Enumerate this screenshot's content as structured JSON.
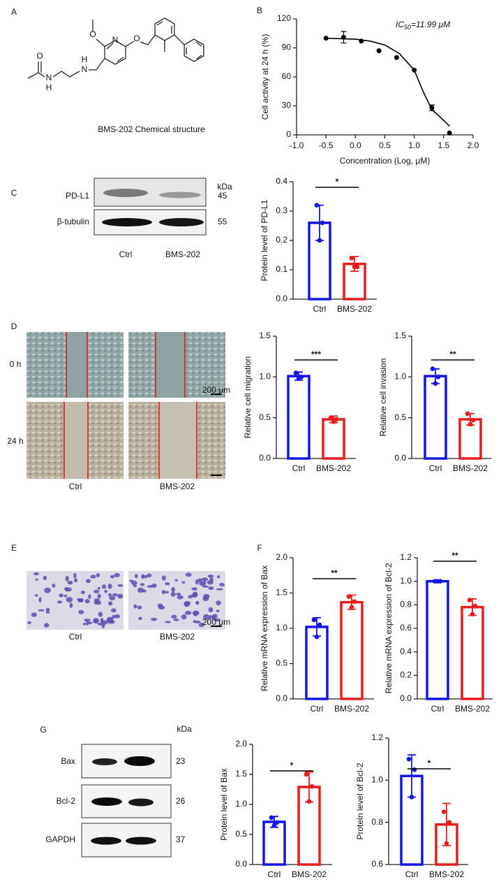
{
  "panel_letters": [
    "A",
    "B",
    "C",
    "D",
    "E",
    "F",
    "G"
  ],
  "structure": {
    "caption": "BMS-202 Chemical structure",
    "atoms": [
      "O",
      "N",
      "O",
      "O",
      "N",
      "H",
      "H",
      "N"
    ]
  },
  "blot_c": {
    "kda": "kDa",
    "rows": [
      {
        "name": "PD-L1",
        "kda": "45"
      },
      {
        "name": "β-tubulin",
        "kda": "55"
      }
    ],
    "lanes": [
      "Ctrl",
      "BMS-202"
    ]
  },
  "wound": {
    "times": [
      "0 h",
      "24 h"
    ],
    "lanes": [
      "Ctrl",
      "BMS-202"
    ],
    "scale_bar": "200 μm"
  },
  "transwell": {
    "lanes": [
      "Ctrl",
      "BMS-202"
    ],
    "scale_bar": "200 μm"
  },
  "blot_g": {
    "kda": "kDa",
    "rows": [
      {
        "name": "Bax",
        "kda": "23"
      },
      {
        "name": "Bcl-2",
        "kda": "26"
      },
      {
        "name": "GAPDH",
        "kda": "37"
      }
    ]
  },
  "chart_data": [
    {
      "type": "scatter",
      "ylabel": "Cell activity at 24 h (%)",
      "xlabel": "Concentration (Log, μM)",
      "annotation": {
        "main": "IC",
        "sub": "50",
        "rest": "=11.99 μM"
      },
      "color": "#000000",
      "x": [
        -0.5,
        -0.2,
        0.1,
        0.4,
        0.7,
        1.0,
        1.3,
        1.6
      ],
      "values": [
        100,
        101,
        97,
        87,
        80,
        67,
        28,
        2
      ],
      "errors": [
        null,
        6,
        null,
        null,
        null,
        null,
        3,
        null
      ],
      "fit": {
        "x": [
          -0.5,
          0,
          0.25,
          0.5,
          0.75,
          1.0,
          1.15,
          1.3,
          1.45,
          1.6
        ],
        "y": [
          100,
          99,
          97,
          93,
          84,
          67,
          45,
          26,
          18,
          9
        ]
      },
      "xlim": [
        -1,
        2
      ],
      "xticks": [
        {
          "value": -1,
          "label": "-1.0"
        },
        -0.5,
        {
          "value": 0,
          "label": "0.0"
        },
        0.5,
        {
          "value": 1,
          "label": "1.0"
        },
        1.5,
        {
          "value": 2,
          "label": "2.0"
        }
      ],
      "ylim": [
        0,
        120
      ],
      "yticks": [
        0,
        30,
        60,
        90,
        120
      ]
    },
    {
      "type": "bar",
      "ylabel": "Protein level of PD-L1",
      "categories": [
        "Ctrl",
        "BMS-202"
      ],
      "colors": [
        "#1414e6",
        "#e81c1c"
      ],
      "values": [
        0.26,
        0.12
      ],
      "errors": [
        0.06,
        0.025
      ],
      "points": [
        [
          0.32,
          0.2,
          0.26
        ],
        [
          0.14,
          0.11,
          0.11
        ]
      ],
      "significance": "*",
      "ylim": [
        0,
        0.4
      ],
      "yticks": [
        {
          "value": 0,
          "label": "0.0"
        },
        0.1,
        0.2,
        0.3,
        0.4
      ]
    },
    {
      "type": "bar",
      "ylabel": "Relative cell migration",
      "categories": [
        "Ctrl",
        "BMS-202"
      ],
      "colors": [
        "#1414e6",
        "#e81c1c"
      ],
      "values": [
        1.01,
        0.48
      ],
      "errors": [
        0.05,
        0.04
      ],
      "points": [
        [
          1.05,
          0.98,
          1.0
        ],
        [
          0.5,
          0.45,
          0.48
        ]
      ],
      "significance": "***",
      "ylim": [
        0,
        1.5
      ],
      "yticks": [
        {
          "value": 0,
          "label": "0.0"
        },
        0.5,
        {
          "value": 1,
          "label": "1.0"
        },
        1.5
      ]
    },
    {
      "type": "bar",
      "ylabel": "Relative cell invasion",
      "categories": [
        "Ctrl",
        "BMS-202"
      ],
      "colors": [
        "#1414e6",
        "#e81c1c"
      ],
      "values": [
        1.01,
        0.48
      ],
      "errors": [
        0.09,
        0.07
      ],
      "points": [
        [
          1.1,
          0.92,
          1.0
        ],
        [
          0.55,
          0.42,
          0.47
        ]
      ],
      "significance": "**",
      "ylim": [
        0,
        1.5
      ],
      "yticks": [
        {
          "value": 0,
          "label": "0.0"
        },
        0.5,
        {
          "value": 1,
          "label": "1.0"
        },
        1.5
      ]
    },
    {
      "type": "bar",
      "ylabel": "Relative mRNA expression of Bax",
      "categories": [
        "Ctrl",
        "BMS-202"
      ],
      "colors": [
        "#1414e6",
        "#e81c1c"
      ],
      "values": [
        1.02,
        1.37
      ],
      "errors": [
        0.13,
        0.1
      ],
      "points": [
        [
          1.12,
          0.88,
          1.05
        ],
        [
          1.45,
          1.3,
          1.38
        ]
      ],
      "significance": "**",
      "ylim": [
        0,
        2
      ],
      "yticks": [
        {
          "value": 0,
          "label": "0.0"
        },
        0.5,
        {
          "value": 1,
          "label": "1.0"
        },
        1.5,
        {
          "value": 2,
          "label": "2.0"
        }
      ]
    },
    {
      "type": "bar",
      "ylabel": "Relative mRNA expression of Bcl-2",
      "categories": [
        "Ctrl",
        "BMS-202"
      ],
      "colors": [
        "#1414e6",
        "#e81c1c"
      ],
      "values": [
        1.0,
        0.78
      ],
      "errors": [
        0.01,
        0.07
      ],
      "points": [
        [
          1.0,
          1.0,
          1.0
        ],
        [
          0.84,
          0.72,
          0.79
        ]
      ],
      "significance": "**",
      "ylim": [
        0,
        1.2
      ],
      "yticks": [
        {
          "value": 0,
          "label": "0.0"
        },
        0.2,
        0.4,
        0.6,
        0.8,
        {
          "value": 1,
          "label": "1.0"
        },
        1.2
      ]
    },
    {
      "type": "bar",
      "ylabel": "Protein level of Bax",
      "categories": [
        "Ctrl",
        "BMS-202"
      ],
      "colors": [
        "#1414e6",
        "#e81c1c"
      ],
      "values": [
        0.71,
        1.29
      ],
      "errors": [
        0.09,
        0.25
      ],
      "points": [
        [
          0.78,
          0.65,
          0.7
        ],
        [
          1.5,
          1.05,
          1.3
        ]
      ],
      "significance": "*",
      "ylim": [
        0,
        2
      ],
      "yticks": [
        {
          "value": 0,
          "label": "0.0"
        },
        0.5,
        {
          "value": 1,
          "label": "1.0"
        },
        1.5,
        {
          "value": 2,
          "label": "2.0"
        }
      ]
    },
    {
      "type": "bar",
      "ylabel": "Protein level of Bcl-2",
      "categories": [
        "Ctrl",
        "BMS-202"
      ],
      "colors": [
        "#1414e6",
        "#e81c1c"
      ],
      "values": [
        1.02,
        0.79
      ],
      "errors": [
        0.1,
        0.1
      ],
      "points": [
        [
          1.1,
          0.92,
          1.05
        ],
        [
          0.85,
          0.7,
          0.8
        ]
      ],
      "significance": "*",
      "ylim": [
        0.6,
        1.2
      ],
      "yticks": [
        0.6,
        0.8,
        {
          "value": 1,
          "label": "1.0"
        },
        1.2
      ]
    }
  ]
}
